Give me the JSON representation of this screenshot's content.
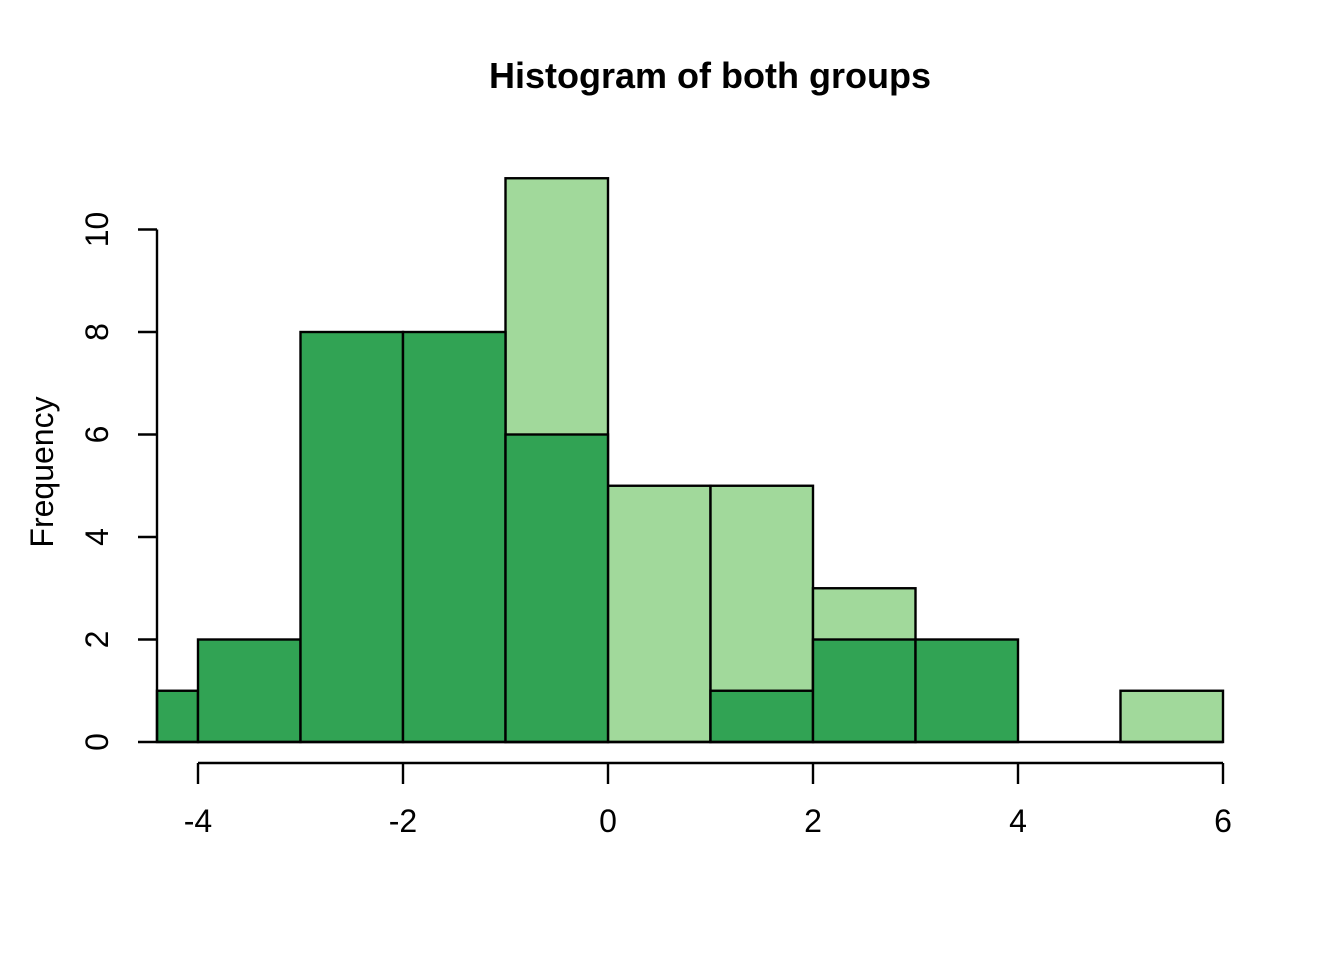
{
  "title": "Histogram of both groups",
  "y_axis_label": "Frequency",
  "chart_data": {
    "type": "histogram",
    "title": "Histogram of both groups",
    "xlabel": "",
    "ylabel": "Frequency",
    "x_ticks": [
      -4,
      -2,
      0,
      2,
      4,
      6
    ],
    "y_ticks": [
      0,
      2,
      4,
      6,
      8,
      10
    ],
    "xlim": [
      -4.4,
      6
    ],
    "ylim": [
      0,
      11
    ],
    "grid": false,
    "legend": "none",
    "bin_width": 1,
    "bar_border_color": "#000000",
    "background_color": "#ffffff",
    "series": [
      {
        "name": "group-light-green",
        "color": "#A1D99B",
        "draw_order": 1,
        "bins": [
          {
            "x0": -1,
            "x1": 0,
            "count": 11
          },
          {
            "x0": 0,
            "x1": 1,
            "count": 5
          },
          {
            "x0": 1,
            "x1": 2,
            "count": 5
          },
          {
            "x0": 2,
            "x1": 3,
            "count": 3
          },
          {
            "x0": 5,
            "x1": 6,
            "count": 1
          }
        ]
      },
      {
        "name": "group-dark-green",
        "color": "#31A354",
        "draw_order": 2,
        "bins": [
          {
            "x0": -4.4,
            "x1": -4,
            "count": 1
          },
          {
            "x0": -4,
            "x1": -3,
            "count": 2
          },
          {
            "x0": -3,
            "x1": -2,
            "count": 8
          },
          {
            "x0": -2,
            "x1": -1,
            "count": 8
          },
          {
            "x0": -1,
            "x1": 0,
            "count": 6
          },
          {
            "x0": 1,
            "x1": 2,
            "count": 1
          },
          {
            "x0": 2,
            "x1": 3,
            "count": 2
          },
          {
            "x0": 3,
            "x1": 4,
            "count": 2
          }
        ]
      }
    ],
    "baseline": {
      "x0": -4.4,
      "x1": 6
    }
  }
}
